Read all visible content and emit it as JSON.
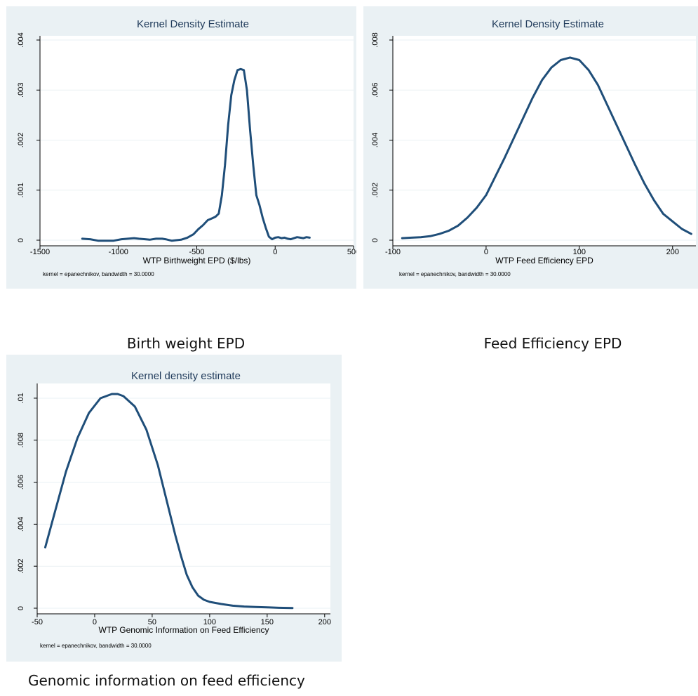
{
  "captions": {
    "panel1": "Birth weight EPD",
    "panel2": "Feed Efficiency EPD",
    "panel3": "Genomic information on feed efficiency"
  },
  "colors": {
    "background": "#eaf1f4",
    "line": "#1f4e79",
    "title": "#1f3a5a",
    "grid": "#ffffff"
  },
  "chart_data": [
    {
      "type": "line",
      "title": "Kernel Density Estimate",
      "xlabel": "WTP Birthweight EPD ($/lbs)",
      "ylabel": "",
      "note": "kernel = epanechnikov, bandwidth = 30.0000",
      "xlim": [
        -1500,
        500
      ],
      "ylim": [
        0,
        0.004
      ],
      "xticks": [
        -1500,
        -1000,
        -500,
        0,
        500
      ],
      "xtick_labels": [
        "-1500",
        "-1000",
        "-500",
        "0",
        "500"
      ],
      "yticks": [
        0,
        0.001,
        0.002,
        0.003,
        0.004
      ],
      "ytick_labels": [
        "0",
        ".001",
        ".002",
        ".003",
        ".004"
      ],
      "grid": true,
      "series": [
        {
          "x": [
            -1230,
            -1180,
            -1130,
            -1080,
            -1030,
            -980,
            -940,
            -900,
            -870,
            -830,
            -800,
            -760,
            -720,
            -700,
            -660,
            -630,
            -600,
            -560,
            -520,
            -490,
            -460,
            -430,
            -400,
            -380,
            -360,
            -340,
            -320,
            -300,
            -280,
            -260,
            -240,
            -220,
            -200,
            -180,
            -160,
            -140,
            -120,
            -100,
            -80,
            -60,
            -40,
            -20,
            0,
            20,
            40,
            60,
            80,
            100,
            120,
            140,
            160,
            180,
            200,
            220
          ],
          "y": [
            3e-05,
            2e-05,
            -1e-05,
            -1e-05,
            -1e-05,
            2e-05,
            3e-05,
            4e-05,
            3e-05,
            2e-05,
            1e-05,
            3e-05,
            3e-05,
            2e-05,
            -1e-05,
            0.0,
            1e-05,
            5e-05,
            0.00012,
            0.00022,
            0.0003,
            0.0004,
            0.00044,
            0.00047,
            0.00053,
            0.0009,
            0.0015,
            0.0023,
            0.0029,
            0.0032,
            0.0034,
            0.00342,
            0.0034,
            0.003,
            0.0022,
            0.0015,
            0.0009,
            0.0007,
            0.00045,
            0.00025,
            7e-05,
            2e-05,
            5e-05,
            6e-05,
            4e-05,
            5e-05,
            3e-05,
            2e-05,
            4e-05,
            6e-05,
            5e-05,
            4e-05,
            6e-05,
            5e-05
          ]
        }
      ]
    },
    {
      "type": "line",
      "title": "Kernel Density Estimate",
      "xlabel": "WTP Feed Efficiency EPD",
      "ylabel": "",
      "note": "kernel = epanechnikov, bandwidth = 30.0000",
      "xlim": [
        -100,
        225
      ],
      "ylim": [
        0,
        0.008
      ],
      "xticks": [
        -100,
        0,
        100,
        200
      ],
      "xtick_labels": [
        "-100",
        "0",
        "100",
        "200"
      ],
      "yticks": [
        0,
        0.002,
        0.004,
        0.006,
        0.008
      ],
      "ytick_labels": [
        "0",
        ".002",
        ".004",
        ".006",
        ".008"
      ],
      "grid": true,
      "series": [
        {
          "x": [
            -90,
            -80,
            -70,
            -60,
            -50,
            -40,
            -30,
            -20,
            -10,
            0,
            10,
            20,
            30,
            40,
            50,
            60,
            70,
            80,
            90,
            100,
            110,
            120,
            130,
            140,
            150,
            160,
            170,
            180,
            190,
            200,
            210,
            220
          ],
          "y": [
            8e-05,
            0.0001,
            0.00012,
            0.00016,
            0.00025,
            0.00038,
            0.00058,
            0.0009,
            0.0013,
            0.0018,
            0.00255,
            0.0033,
            0.0041,
            0.0049,
            0.0057,
            0.0064,
            0.0069,
            0.0072,
            0.0073,
            0.0072,
            0.0068,
            0.0062,
            0.0054,
            0.0046,
            0.0038,
            0.003,
            0.00225,
            0.0016,
            0.00105,
            0.00075,
            0.00045,
            0.00025
          ]
        }
      ]
    },
    {
      "type": "line",
      "title": "Kernel density estimate",
      "xlabel": "WTP Genomic Information on Feed Efficiency",
      "ylabel": "",
      "note": "kernel = epanechnikov, bandwidth = 30.0000",
      "xlim": [
        -50,
        205
      ],
      "ylim": [
        0,
        0.0105
      ],
      "xticks": [
        -50,
        0,
        50,
        100,
        150,
        200
      ],
      "xtick_labels": [
        "-50",
        "0",
        "50",
        "100",
        "150",
        "200"
      ],
      "yticks": [
        0,
        0.002,
        0.004,
        0.006,
        0.008,
        0.01
      ],
      "ytick_labels": [
        "0",
        ".002",
        ".004",
        ".006",
        ".008",
        ".01"
      ],
      "grid": true,
      "series": [
        {
          "x": [
            -43,
            -35,
            -25,
            -15,
            -5,
            5,
            15,
            20,
            25,
            35,
            45,
            55,
            65,
            70,
            75,
            80,
            85,
            90,
            95,
            100,
            110,
            120,
            130,
            140,
            150,
            160,
            172
          ],
          "y": [
            0.0029,
            0.0045,
            0.0065,
            0.0081,
            0.0093,
            0.01,
            0.0102,
            0.0102,
            0.0101,
            0.0096,
            0.0085,
            0.0068,
            0.0046,
            0.0035,
            0.0025,
            0.0016,
            0.001,
            0.0006,
            0.0004,
            0.0003,
            0.0002,
            0.00012,
            8e-05,
            6e-05,
            4e-05,
            2e-05,
            1e-05
          ]
        }
      ]
    }
  ]
}
